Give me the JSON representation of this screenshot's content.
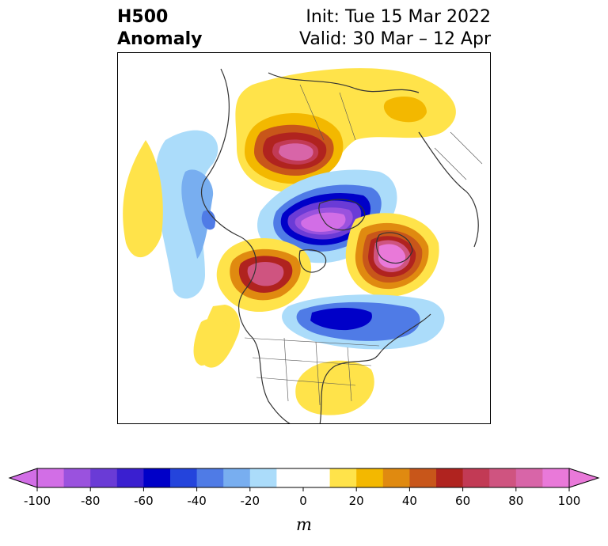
{
  "title": {
    "left_line1": "H500",
    "left_line2": "Anomaly",
    "right_line1": "Init: Tue 15 Mar 2022",
    "right_line2": "Valid: 30 Mar – 12 Apr"
  },
  "colorbar": {
    "unit": "m",
    "levels": [
      -100,
      -90,
      -80,
      -70,
      -60,
      -50,
      -40,
      -30,
      -20,
      -10,
      10,
      20,
      30,
      40,
      50,
      60,
      70,
      80,
      90,
      100
    ],
    "tick_labels": [
      "-100",
      "-80",
      "-60",
      "-40",
      "-20",
      "0",
      "20",
      "40",
      "60",
      "80",
      "100"
    ],
    "tick_values": [
      -100,
      -80,
      -60,
      -40,
      -20,
      0,
      20,
      40,
      60,
      80,
      100
    ],
    "colors": [
      "#d26ee6",
      "#9a52de",
      "#6a3bd6",
      "#3a1fd0",
      "#0000c8",
      "#2444dc",
      "#4f7be6",
      "#78aef0",
      "#abdcfa",
      "#ffffff",
      "#ffe34a",
      "#f3b800",
      "#e08a10",
      "#c8561a",
      "#b0231f",
      "#c23a55",
      "#cf5480",
      "#d865a8",
      "#e979d9"
    ],
    "extend": "both"
  }
}
